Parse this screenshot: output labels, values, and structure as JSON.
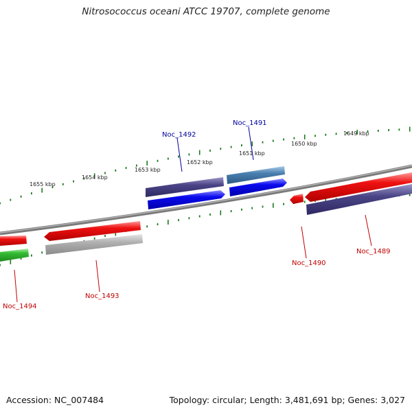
{
  "title": "Nitrosococcus oceani ATCC 19707, complete genome",
  "footer": {
    "accession": "Accession: NC_007484",
    "summary": "Topology: circular; Length: 3,481,691 bp; Genes: 3,027"
  },
  "scale": {
    "unit": "kbp",
    "labels": [
      "1655 kbp",
      "1654 kbp",
      "1653 kbp",
      "1652 kbp",
      "1651 kbp",
      "1650 kbp",
      "1649 kbp"
    ]
  },
  "genes": [
    {
      "name": "Noc_1494",
      "label_color": "#c00000"
    },
    {
      "name": "Noc_1493",
      "label_color": "#c00000"
    },
    {
      "name": "Noc_1492",
      "label_color": "#0000a0"
    },
    {
      "name": "Noc_1491",
      "label_color": "#0000a0"
    },
    {
      "name": "Noc_1490",
      "label_color": "#c00000"
    },
    {
      "name": "Noc_1489",
      "label_color": "#c00000"
    }
  ],
  "colors": {
    "backbone": "#7a7a7a",
    "tick": "#1a7a1a",
    "red_feature": "#ee1111",
    "green_feature": "#33bb33",
    "blue_feature": "#0a0aee",
    "purple_feature": "#4a4486",
    "steel_feature": "#4a7fb0",
    "gray_feature": "#aaaaaa"
  }
}
